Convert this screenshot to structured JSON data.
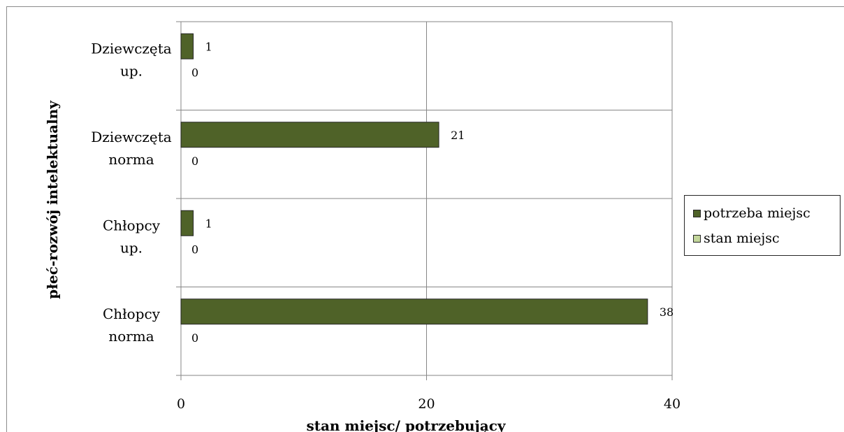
{
  "chart_data": {
    "type": "bar",
    "orientation": "horizontal",
    "categories": [
      "Chłopcy norma",
      "Chłopcy up.",
      "Dziewczęta norma",
      "Dziewczęta up."
    ],
    "category_lines": [
      [
        "Chłopcy",
        "norma"
      ],
      [
        "Chłopcy",
        "up."
      ],
      [
        "Dziewczęta",
        "norma"
      ],
      [
        "Dziewczęta",
        "up."
      ]
    ],
    "series": [
      {
        "name": "potrzeba miejsc",
        "values": [
          38,
          1,
          21,
          1
        ],
        "color": "#4f6228"
      },
      {
        "name": "stan miejsc",
        "values": [
          0,
          0,
          0,
          0
        ],
        "color": "#c3d69b"
      }
    ],
    "xlabel": "stan miejsc/ potrzebujący",
    "ylabel": "płeć-rozwój intelektualny",
    "xlim": [
      0,
      40
    ],
    "xticks": [
      0,
      20,
      40
    ],
    "grid": true,
    "legend_position": "right"
  },
  "legend": {
    "items": [
      {
        "label": "potrzeba miejsc",
        "color": "#4f6228"
      },
      {
        "label": "stan miejsc",
        "color": "#c3d69b"
      }
    ]
  },
  "colors": {
    "grid": "#868686",
    "axis": "#868686",
    "bar_border": "#262626"
  }
}
